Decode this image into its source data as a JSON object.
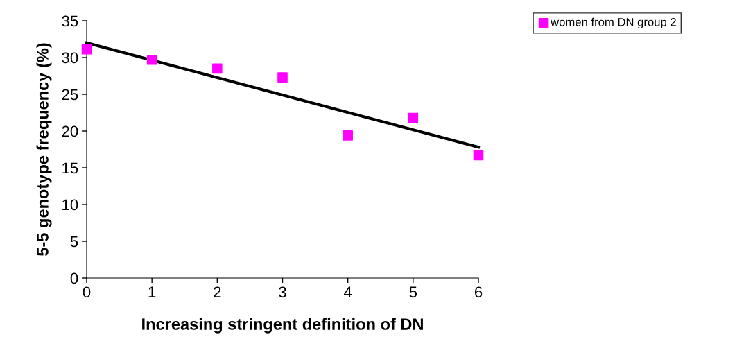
{
  "chart_data": {
    "type": "scatter",
    "xlabel": "Increasing stringent definition of DN",
    "ylabel": "5-5 genotype frequency (%)",
    "xlim": [
      0,
      6
    ],
    "xticks": [
      0,
      1,
      2,
      3,
      4,
      5,
      6
    ],
    "ylim": [
      0,
      35
    ],
    "yticks": [
      0,
      5,
      10,
      15,
      20,
      25,
      30,
      35
    ],
    "grid": false,
    "legend": "top right",
    "series": [
      {
        "name": "women from DN group 2",
        "marker": "square",
        "color": "#ff00ff",
        "x": [
          0,
          1,
          2,
          3,
          4,
          5,
          6
        ],
        "values": [
          31.1,
          29.7,
          28.5,
          27.3,
          19.4,
          21.8,
          16.7
        ]
      },
      {
        "type": "line",
        "color": "#000000",
        "x": [
          0,
          6
        ],
        "values": [
          32.0,
          17.8
        ]
      }
    ]
  }
}
